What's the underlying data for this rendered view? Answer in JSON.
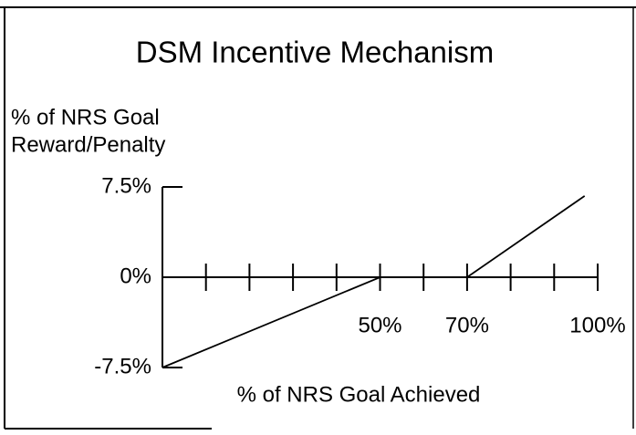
{
  "chart_data": {
    "type": "line",
    "title": "DSM Incentive Mechanism",
    "ylabel": [
      "% of NRS Goal",
      "Reward/Penalty"
    ],
    "xlabel": "% of NRS Goal Achieved",
    "x": [
      0,
      50,
      70,
      97
    ],
    "values": [
      -7.5,
      0,
      0,
      6.75
    ],
    "color": "#000000",
    "xlim": [
      0,
      100
    ],
    "ylim": [
      -7.5,
      7.5
    ],
    "xticks": [
      10,
      20,
      30,
      40,
      {
        "value": 50,
        "label": "50%"
      },
      60,
      {
        "value": 70,
        "label": "70%"
      },
      80,
      90,
      {
        "value": 100,
        "label": "100%"
      }
    ],
    "yticks": [
      {
        "value": 7.5,
        "label": "7.5%"
      },
      {
        "value": 0,
        "label": "0%"
      },
      {
        "value": -7.5,
        "label": "-7.5%"
      }
    ]
  }
}
